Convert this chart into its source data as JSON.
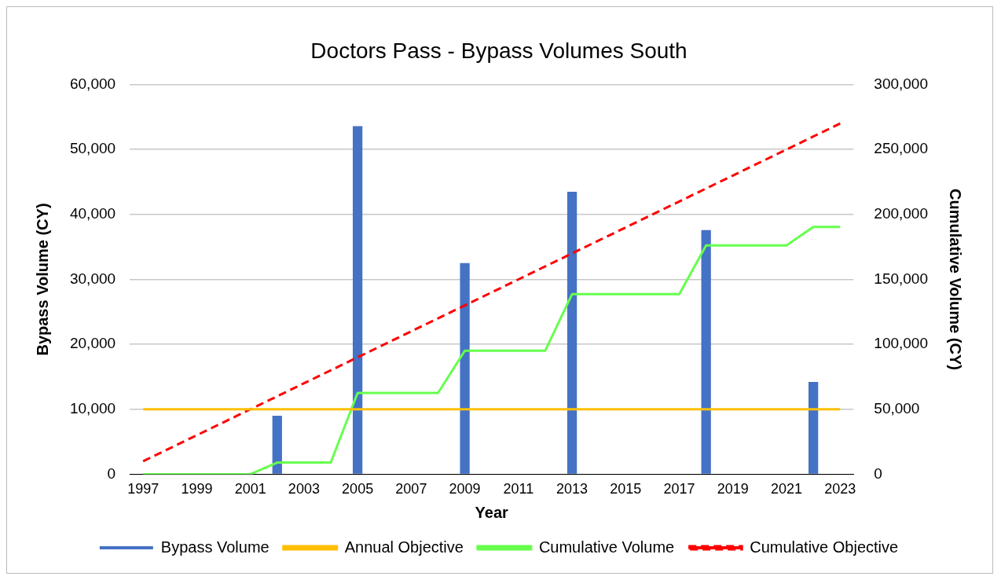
{
  "chart_data": {
    "type": "bar",
    "title": "Doctors Pass - Bypass Volumes South",
    "xlabel": "Year",
    "ylabel": "Bypass Volume (CY)",
    "y2label": "Cumulative Volume (CY)",
    "categories": [
      "1997",
      null,
      "1999",
      null,
      "2001",
      null,
      "2003",
      null,
      "2005",
      null,
      "2007",
      null,
      "2009",
      null,
      "2011",
      null,
      "2013",
      null,
      "2015",
      null,
      "2017",
      null,
      "2019",
      null,
      "2021",
      null,
      "2023"
    ],
    "series": [
      {
        "name": "Bypass Volume",
        "color": "#4472c4",
        "values": [
          null,
          null,
          null,
          null,
          null,
          9000,
          null,
          null,
          53600,
          null,
          null,
          null,
          32500,
          null,
          null,
          null,
          43500,
          null,
          null,
          null,
          null,
          37600,
          null,
          null,
          null,
          14200,
          null
        ]
      },
      {
        "name": "Annual Objective",
        "type": "line",
        "color": "#ffc000",
        "line_style": "solid",
        "values": [
          10000,
          10000,
          10000,
          10000,
          10000,
          10000,
          10000,
          10000,
          10000,
          10000,
          10000,
          10000,
          10000,
          10000,
          10000,
          10000,
          10000,
          10000,
          10000,
          10000,
          10000,
          10000,
          10000,
          10000,
          10000,
          10000,
          10000
        ]
      },
      {
        "name": "Cumulative Volume",
        "type": "line",
        "axis": "y2",
        "color": "#66ff4d",
        "line_style": "solid",
        "values": [
          0,
          0,
          0,
          0,
          0,
          9000,
          9000,
          9000,
          62600,
          62600,
          62600,
          62600,
          95100,
          95100,
          95100,
          95100,
          138600,
          138600,
          138600,
          138600,
          138600,
          176200,
          176200,
          176200,
          176200,
          190400,
          190400
        ]
      },
      {
        "name": "Cumulative Objective",
        "type": "line",
        "axis": "y2",
        "color": "#ff0000",
        "line_style": "dashed",
        "values": [
          10000,
          20000,
          30000,
          40000,
          50000,
          60000,
          70000,
          80000,
          90000,
          100000,
          110000,
          120000,
          130000,
          140000,
          150000,
          160000,
          170000,
          180000,
          190000,
          200000,
          210000,
          220000,
          230000,
          240000,
          250000,
          260000,
          270000
        ]
      }
    ],
    "ylim": [
      0,
      60000
    ],
    "yticks": [
      {
        "value": 0,
        "label": "0"
      },
      {
        "value": 10000,
        "label": "10,000"
      },
      {
        "value": 20000,
        "label": "20,000"
      },
      {
        "value": 30000,
        "label": "30,000"
      },
      {
        "value": 40000,
        "label": "40,000"
      },
      {
        "value": 50000,
        "label": "50,000"
      },
      {
        "value": 60000,
        "label": "60,000"
      }
    ],
    "y2lim": [
      0,
      300000
    ],
    "y2ticks": [
      {
        "value": 0,
        "label": "0"
      },
      {
        "value": 50000,
        "label": "50,000"
      },
      {
        "value": 100000,
        "label": "100,000"
      },
      {
        "value": 150000,
        "label": "150,000"
      },
      {
        "value": 200000,
        "label": "200,000"
      },
      {
        "value": 250000,
        "label": "250,000"
      },
      {
        "value": 300000,
        "label": "300,000"
      }
    ],
    "grid": "y",
    "legend": "bottom",
    "marker": "none"
  }
}
